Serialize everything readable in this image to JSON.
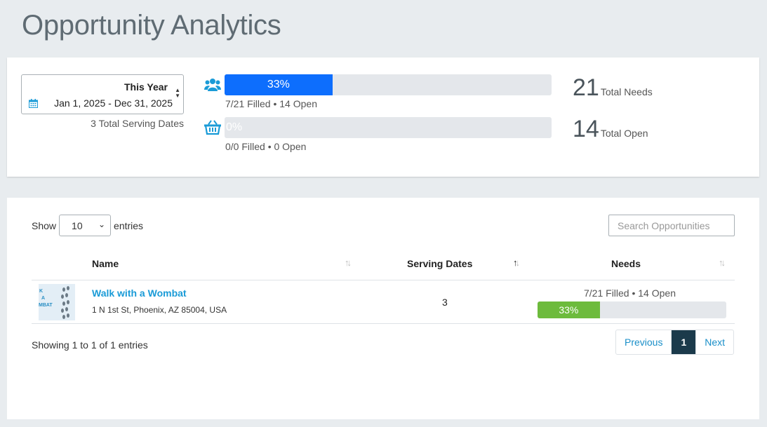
{
  "page": {
    "title": "Opportunity Analytics"
  },
  "summary": {
    "date_range": {
      "name": "This Year",
      "dates": "Jan 1, 2025 - Dec 31, 2025"
    },
    "serving_dates_total": "3 Total Serving Dates",
    "volunteer_bar": {
      "percent_value": 33,
      "percent_label": "33%",
      "caption": "7/21 Filled • 14 Open"
    },
    "items_bar": {
      "percent_value": 0,
      "percent_label": "0%",
      "caption": "0/0 Filled • 0 Open"
    },
    "total_needs": {
      "number": "21",
      "label": "Total Needs"
    },
    "total_open": {
      "number": "14",
      "label": "Total Open"
    }
  },
  "table": {
    "show_label": "Show",
    "entries_label": "entries",
    "length_value": "10",
    "search_placeholder": "Search Opportunities",
    "columns": {
      "name": "Name",
      "serving_dates": "Serving Dates",
      "needs": "Needs"
    },
    "rows": [
      {
        "name": "Walk with a Wombat",
        "address": "1 N 1st St, Phoenix, AZ 85004, USA",
        "serving_dates": "3",
        "needs_caption": "7/21 Filled • 14 Open",
        "needs_percent_value": 33,
        "needs_percent_label": "33%"
      }
    ],
    "info": "Showing 1 to 1 of 1 entries",
    "pagination": {
      "previous": "Previous",
      "current": "1",
      "next": "Next"
    }
  },
  "colors": {
    "primary_bar": "#0d6efd",
    "success_bar": "#6dbb3c",
    "link": "#1a9bd7",
    "active_page": "#1b3a4b"
  }
}
